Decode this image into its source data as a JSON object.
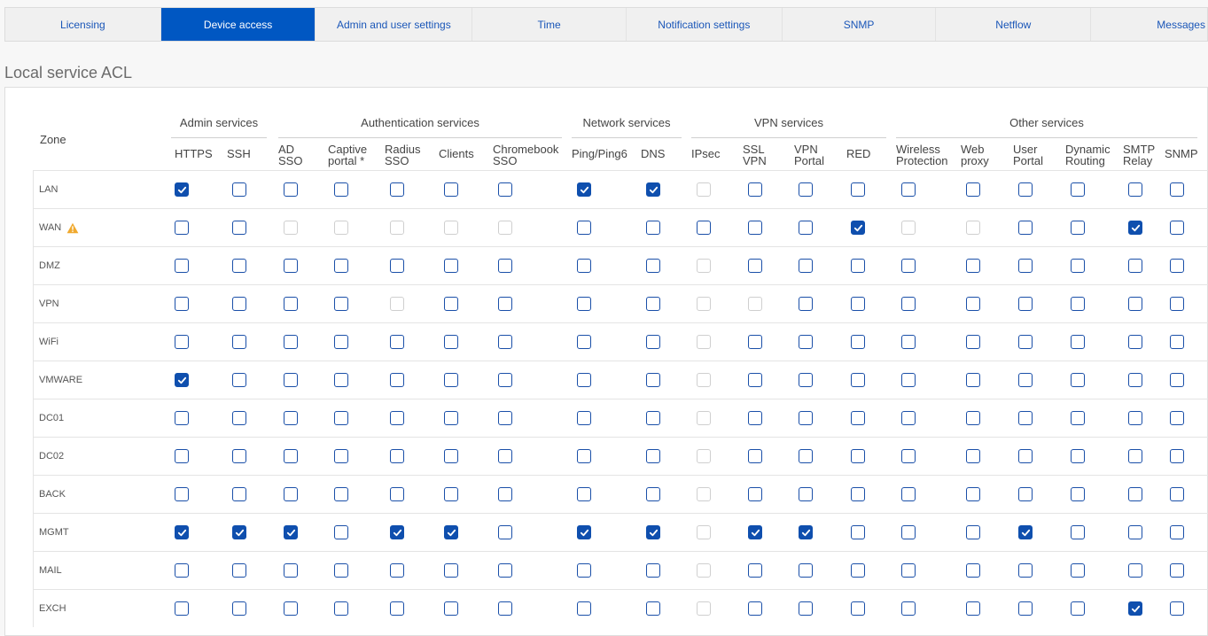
{
  "tabs": [
    "Licensing",
    "Device access",
    "Admin and user settings",
    "Time",
    "Notification settings",
    "SNMP",
    "Netflow",
    "Messages"
  ],
  "active_tab": 1,
  "section_title": "Local service ACL",
  "zone_header": "Zone",
  "groups": [
    "Admin services",
    "Authentication services",
    "Network services",
    "VPN services",
    "Other services"
  ],
  "columns": [
    "HTTPS",
    "SSH",
    "AD\nSSO",
    "Captive\nportal *",
    "Radius\nSSO",
    "Clients",
    "Chromebook\nSSO",
    "Ping/Ping6",
    "DNS",
    "IPsec",
    "SSL\nVPN",
    "VPN\nPortal",
    "RED",
    "Wireless\nProtection",
    "Web\nproxy",
    "User\nPortal",
    "Dynamic\nRouting",
    "SMTP\nRelay",
    "SNMP"
  ],
  "rows": [
    {
      "zone": "LAN",
      "warning": false,
      "states": "c u u u u u u c c d u u u u u u u u u"
    },
    {
      "zone": "WAN",
      "warning": true,
      "states": "u u d d d d d u u u u u c d d u u c u"
    },
    {
      "zone": "DMZ",
      "warning": false,
      "states": "u u u u u u u u u d u u u u u u u u u"
    },
    {
      "zone": "VPN",
      "warning": false,
      "states": "u u u u d u u u u d d u u u u u u u u"
    },
    {
      "zone": "WiFi",
      "warning": false,
      "states": "u u u u u u u u u d u u u u u u u u u"
    },
    {
      "zone": "VMWARE",
      "warning": false,
      "states": "c u u u u u u u u d u u u u u u u u u"
    },
    {
      "zone": "DC01",
      "warning": false,
      "states": "u u u u u u u u u d u u u u u u u u u"
    },
    {
      "zone": "DC02",
      "warning": false,
      "states": "u u u u u u u u u d u u u u u u u u u"
    },
    {
      "zone": "BACK",
      "warning": false,
      "states": "u u u u u u u u u d u u u u u u u u u"
    },
    {
      "zone": "MGMT",
      "warning": false,
      "states": "c c c u c c u c c d c c u u u c u u u"
    },
    {
      "zone": "MAIL",
      "warning": false,
      "states": "u u u u u u u u u d u u u u u u u u u"
    },
    {
      "zone": "EXCH",
      "warning": false,
      "states": "u u u u u u u u u d u u u u u u u c u"
    }
  ],
  "colors": {
    "accent": "#0057c2",
    "checkbox": "#0f4fae",
    "warning": "#f0a92e"
  },
  "icons": {
    "warning": "warning-icon",
    "check": "check-icon"
  }
}
